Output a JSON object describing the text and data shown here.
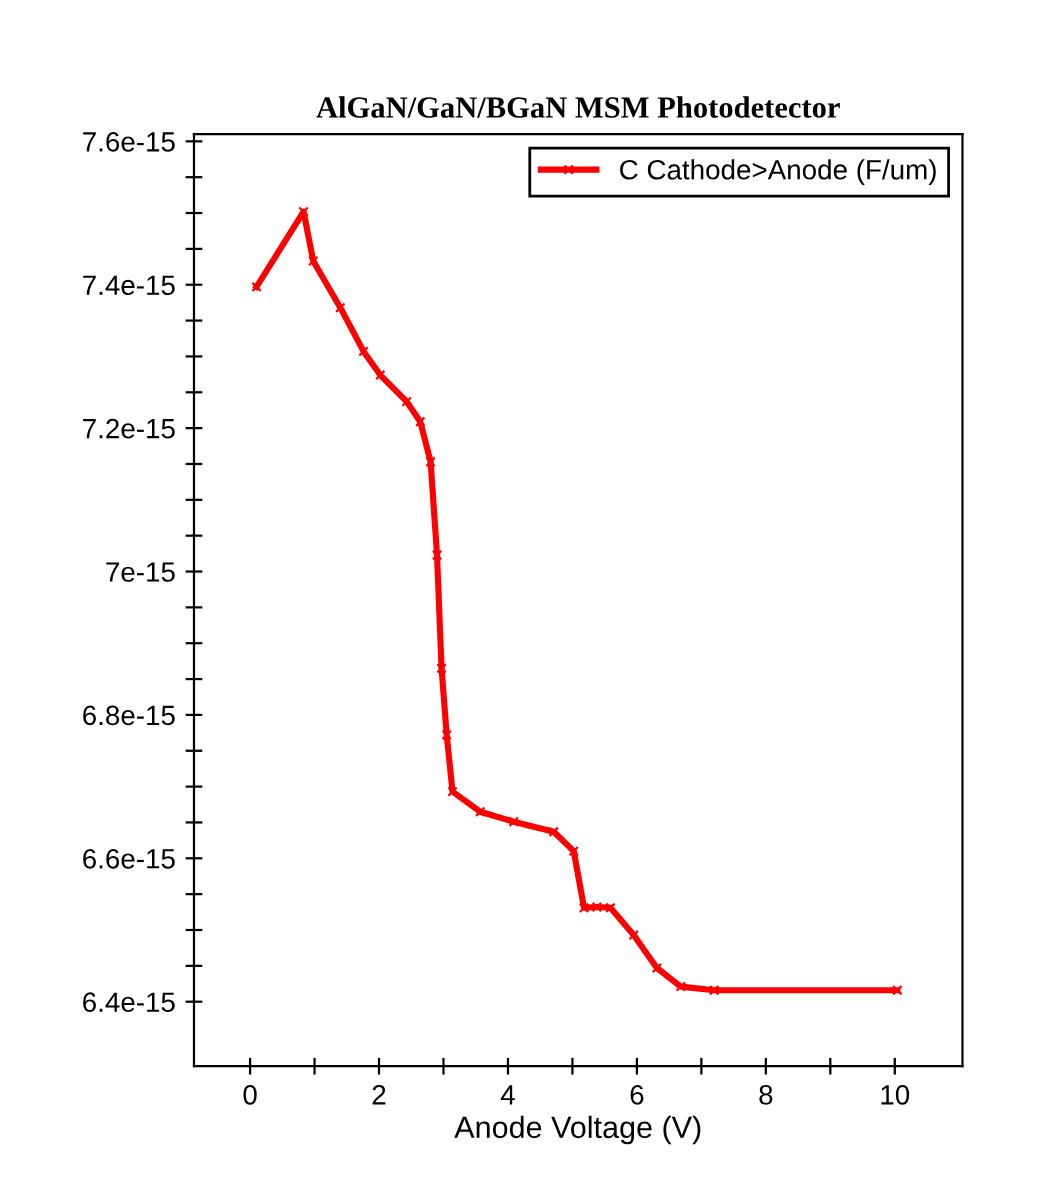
{
  "chart_data": {
    "type": "line",
    "title": "AlGaN/GaN/BGaN MSM Photodetector",
    "xlabel": "Anode Voltage (V)",
    "x": [
      0.1,
      0.83,
      0.98,
      1.4,
      1.76,
      2.02,
      2.43,
      2.64,
      2.8,
      2.9,
      2.97,
      3.05,
      3.14,
      3.57,
      4.09,
      4.71,
      5.02,
      5.18,
      5.38,
      5.59,
      5.95,
      6.31,
      6.68,
      7.2,
      10.04
    ],
    "series": [
      {
        "name": "C Cathode>Anode (F/um)",
        "color": "#ff0000",
        "values": [
          7.397e-15,
          7.502e-15,
          7.433e-15,
          7.368e-15,
          7.307e-15,
          7.274e-15,
          7.237e-15,
          7.209e-15,
          7.153e-15,
          7.023e-15,
          6.865e-15,
          6.772e-15,
          6.693e-15,
          6.665e-15,
          6.651e-15,
          6.637e-15,
          6.61e-15,
          6.531e-15,
          6.532e-15,
          6.531e-15,
          6.493e-15,
          6.447e-15,
          6.421e-15,
          6.416e-15,
          6.416e-15
        ]
      }
    ],
    "xlim": [
      -0.87,
      11.05
    ],
    "ylim": [
      6.31e-15,
      7.61e-15
    ],
    "xticks": [
      0,
      {
        "value": 1,
        "label": null
      },
      2,
      {
        "value": 3,
        "label": null
      },
      4,
      {
        "value": 5,
        "label": null
      },
      6,
      {
        "value": 7,
        "label": null
      },
      8,
      {
        "value": 9,
        "label": null
      },
      10
    ],
    "yticks": [
      6.4e-15,
      {
        "value": 6.45e-15,
        "label": null
      },
      {
        "value": 6.5e-15,
        "label": null
      },
      {
        "value": 6.55e-15,
        "label": null
      },
      6.6e-15,
      {
        "value": 6.65e-15,
        "label": null
      },
      {
        "value": 6.7e-15,
        "label": null
      },
      {
        "value": 6.75e-15,
        "label": null
      },
      6.8e-15,
      {
        "value": 6.85e-15,
        "label": null
      },
      {
        "value": 6.9e-15,
        "label": null
      },
      {
        "value": 6.95e-15,
        "label": null
      },
      7e-15,
      {
        "value": 7.05e-15,
        "label": null
      },
      {
        "value": 7.1e-15,
        "label": null
      },
      {
        "value": 7.15e-15,
        "label": null
      },
      7.2e-15,
      {
        "value": 7.25e-15,
        "label": null
      },
      {
        "value": 7.3e-15,
        "label": null
      },
      {
        "value": 7.35e-15,
        "label": null
      },
      7.4e-15,
      {
        "value": 7.45e-15,
        "label": null
      },
      {
        "value": 7.5e-15,
        "label": null
      },
      {
        "value": 7.55e-15,
        "label": null
      },
      7.6e-15
    ],
    "marker": "cross",
    "line_style": "solid",
    "legend": "top right",
    "grid": false
  }
}
